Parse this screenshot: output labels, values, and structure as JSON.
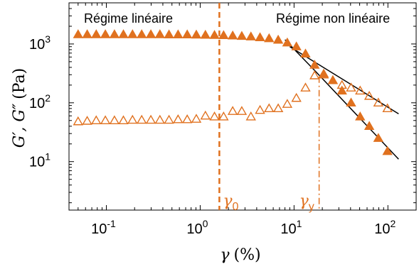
{
  "chart_data": {
    "type": "scatter",
    "xscale": "log",
    "yscale": "log",
    "xlim": [
      0.04,
      200
    ],
    "ylim": [
      1.5,
      5000
    ],
    "xticks": [
      {
        "value": 0.1,
        "base": "10",
        "exp": "-1"
      },
      {
        "value": 1,
        "base": "10",
        "exp": "0"
      },
      {
        "value": 10,
        "base": "10",
        "exp": "1"
      },
      {
        "value": 100,
        "base": "10",
        "exp": "2"
      }
    ],
    "yticks": [
      {
        "value": 10,
        "base": "10",
        "exp": "1"
      },
      {
        "value": 100,
        "base": "10",
        "exp": "2"
      },
      {
        "value": 1000,
        "base": "10",
        "exp": "3"
      }
    ],
    "xlabel": {
      "symbol": "γ",
      "unit": "(%)"
    },
    "ylabel": {
      "symbol": "G′, G″",
      "unit": "(Pa)"
    },
    "annotations": [
      {
        "text": "Régime linéaire"
      },
      {
        "text": "Régime non linéaire"
      }
    ],
    "vlines": [
      {
        "name": "γ0",
        "symbol": "γ",
        "sub": "0",
        "x": 1.6,
        "style": "dashed"
      },
      {
        "name": "γy",
        "symbol": "γ",
        "sub": "y",
        "x": 18.5,
        "style": "dashdot"
      }
    ],
    "colors": {
      "series": "#e0711f",
      "fit": "#000000",
      "axis": "#000000"
    },
    "series": [
      {
        "marker": "triangle-filled",
        "x": [
          0.05,
          0.0625,
          0.078,
          0.0976,
          0.122,
          0.152,
          0.19,
          0.238,
          0.298,
          0.372,
          0.465,
          0.581,
          0.727,
          0.909,
          1.136,
          1.42,
          1.775,
          2.22,
          2.775,
          3.47,
          4.34,
          5.42,
          6.78,
          8.47,
          10.59,
          13.24,
          16.55,
          20.7,
          25.9,
          32.4,
          40.5,
          50.6,
          63.3,
          79.1,
          98.9
        ],
        "y": [
          1450,
          1450,
          1450,
          1450,
          1450,
          1450,
          1450,
          1450,
          1450,
          1450,
          1440,
          1440,
          1440,
          1430,
          1420,
          1410,
          1400,
          1380,
          1360,
          1330,
          1290,
          1240,
          1170,
          1050,
          900,
          680,
          440,
          310,
          240,
          160,
          100,
          58,
          40,
          25,
          15
        ]
      },
      {
        "marker": "triangle-open",
        "x": [
          0.05,
          0.0625,
          0.078,
          0.0976,
          0.122,
          0.152,
          0.19,
          0.238,
          0.298,
          0.372,
          0.465,
          0.581,
          0.727,
          0.909,
          1.136,
          1.42,
          1.775,
          2.22,
          2.775,
          3.47,
          4.34,
          5.42,
          6.78,
          8.47,
          10.59,
          13.24,
          16.55,
          20.7,
          25.9,
          32.4,
          40.5,
          50.6,
          63.3,
          79.1,
          98.9
        ],
        "y": [
          48,
          49,
          50,
          50,
          50,
          50,
          51,
          51,
          51,
          51,
          51,
          52,
          52,
          53,
          60,
          58,
          58,
          72,
          72,
          58,
          75,
          80,
          80,
          95,
          120,
          180,
          290,
          300,
          240,
          200,
          180,
          160,
          130,
          100,
          80
        ]
      }
    ],
    "fit_lines": [
      {
        "x": [
          8,
          17
        ],
        "y": [
          1180,
          340
        ]
      },
      {
        "x": [
          9,
          130
        ],
        "y": [
          900,
          65
        ]
      },
      {
        "x": [
          17,
          130
        ],
        "y": [
          340,
          11
        ]
      }
    ]
  }
}
